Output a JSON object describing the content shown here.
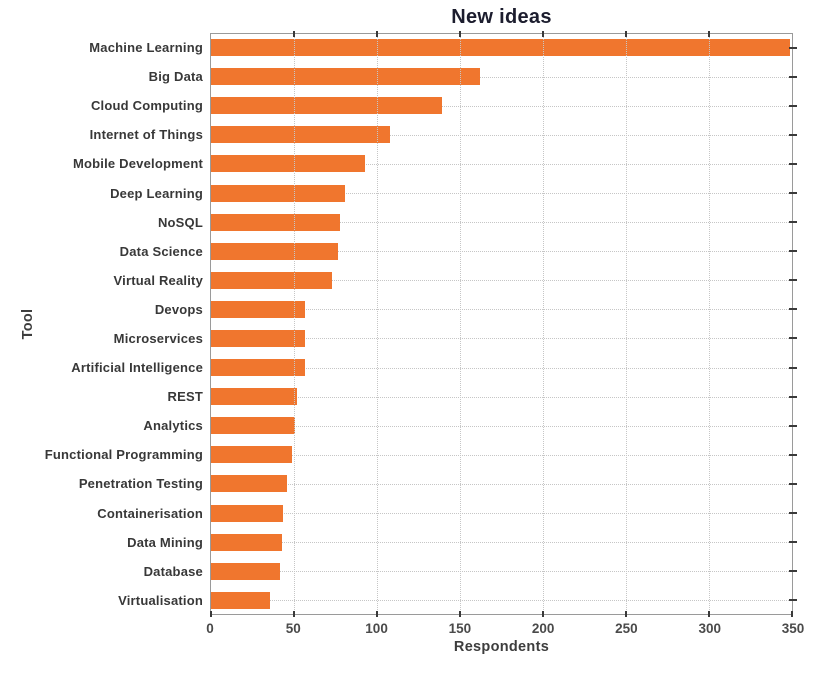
{
  "chart_data": {
    "type": "bar",
    "orientation": "horizontal",
    "title": "New ideas",
    "xlabel": "Respondents",
    "ylabel": "Tool",
    "xlim": [
      0,
      350
    ],
    "xticks": [
      0,
      50,
      100,
      150,
      200,
      250,
      300,
      350
    ],
    "grid": "dotted",
    "legend": "none",
    "bar_color": "#f0762e",
    "categories": [
      "Machine Learning",
      "Big Data",
      "Cloud Computing",
      "Internet of Things",
      "Mobile Development",
      "Deep Learning",
      "NoSQL",
      "Data Science",
      "Virtual Reality",
      "Devops",
      "Microservices",
      "Artificial Intelligence",
      "REST",
      "Analytics",
      "Functional Programming",
      "Penetration Testing",
      "Containerisation",
      "Data Mining",
      "Database",
      "Virtualisation"
    ],
    "values": [
      348,
      162,
      139,
      108,
      93,
      81,
      78,
      77,
      73,
      57,
      57,
      57,
      52,
      51,
      49,
      46,
      44,
      43,
      42,
      36
    ]
  }
}
